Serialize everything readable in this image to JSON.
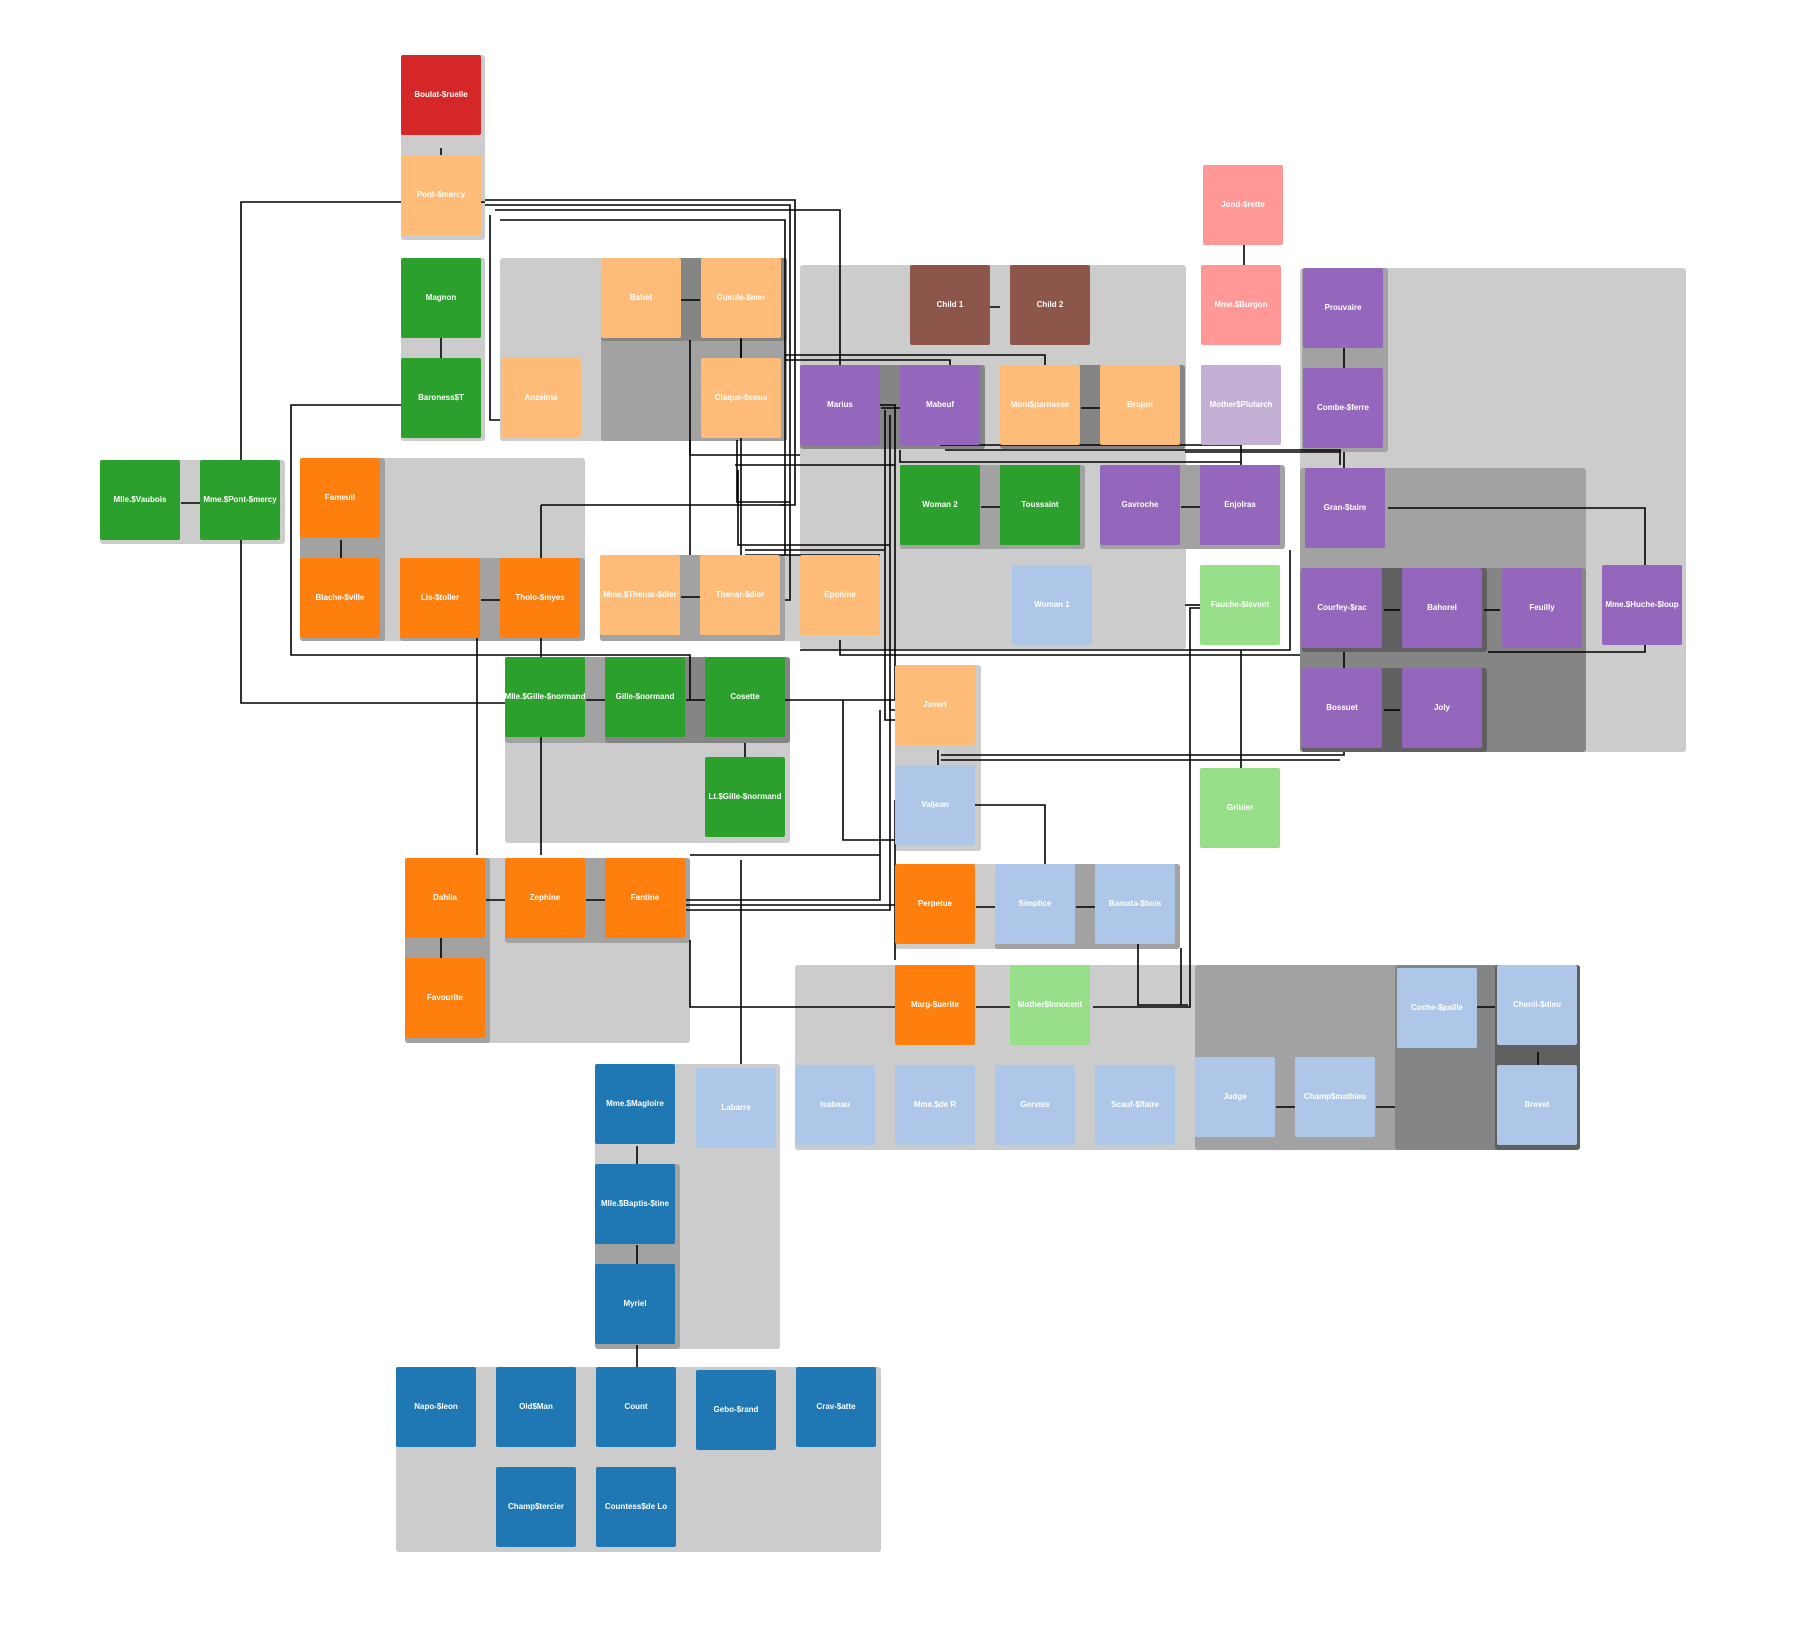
{
  "colors": {
    "group_light": "#cccccc",
    "group_mid": "#a2a2a2",
    "group_dark": "#858585",
    "edge": "#000000",
    "label": "#ffffff"
  },
  "nodes": [
    {
      "id": "boulat",
      "label": "Boulat-$ruelle",
      "color": "#d62728"
    },
    {
      "id": "pontmercy",
      "label": "Pont-$mercy",
      "color": "#ffbb78"
    },
    {
      "id": "magnon",
      "label": "Magnon",
      "color": "#2ca02c"
    },
    {
      "id": "barones",
      "label": "Baroness$T",
      "color": "#2ca02c"
    },
    {
      "id": "babet",
      "label": "Babet",
      "color": "#ffbb78"
    },
    {
      "id": "gueule",
      "label": "Gueule-$mer",
      "color": "#ffbb78"
    },
    {
      "id": "anzelma",
      "label": "Anzelma",
      "color": "#ffbb78"
    },
    {
      "id": "claque",
      "label": "Claque-$sous",
      "color": "#ffbb78"
    },
    {
      "id": "child1",
      "label": "Child 1",
      "color": "#8c564b"
    },
    {
      "id": "child2",
      "label": "Child 2",
      "color": "#8c564b"
    },
    {
      "id": "marius",
      "label": "Marius",
      "color": "#9467bd"
    },
    {
      "id": "mabeuf",
      "label": "Mabeuf",
      "color": "#9467bd"
    },
    {
      "id": "montpar",
      "label": "Mont$parnasse",
      "color": "#ffbb78"
    },
    {
      "id": "brujon",
      "label": "Brujon",
      "color": "#ffbb78"
    },
    {
      "id": "jondrette",
      "label": "Jond-$rette",
      "color": "#ff9896"
    },
    {
      "id": "burgon",
      "label": "Mme.$Burgon",
      "color": "#ff9896"
    },
    {
      "id": "motherplut",
      "label": "Mother$Plutarch",
      "color": "#c5b0d5"
    },
    {
      "id": "prouvaire",
      "label": "Prouvaire",
      "color": "#9467bd"
    },
    {
      "id": "combeferre",
      "label": "Combe-$ferre",
      "color": "#9467bd"
    },
    {
      "id": "vaubois",
      "label": "Mlle.$Vaubois",
      "color": "#2ca02c"
    },
    {
      "id": "mmepont",
      "label": "Mme.$Pont-$mercy",
      "color": "#2ca02c"
    },
    {
      "id": "fameuil",
      "label": "Fameuil",
      "color": "#ff7f0e"
    },
    {
      "id": "blacheville",
      "label": "Blache-$ville",
      "color": "#ff7f0e"
    },
    {
      "id": "listolier",
      "label": "Lis-$toller",
      "color": "#ff7f0e"
    },
    {
      "id": "tholomyes",
      "label": "Tholo-$myes",
      "color": "#ff7f0e"
    },
    {
      "id": "woman2",
      "label": "Woman 2",
      "color": "#2ca02c"
    },
    {
      "id": "toussaint",
      "label": "Toussaint",
      "color": "#2ca02c"
    },
    {
      "id": "gavroche",
      "label": "Gavroche",
      "color": "#9467bd"
    },
    {
      "id": "enjolras",
      "label": "Enjolras",
      "color": "#9467bd"
    },
    {
      "id": "grantaire",
      "label": "Gran-$taire",
      "color": "#9467bd"
    },
    {
      "id": "mmethenar",
      "label": "Mme.$Thenar-$dier",
      "color": "#ffbb78"
    },
    {
      "id": "thenardier",
      "label": "Thenar-$dier",
      "color": "#ffbb78"
    },
    {
      "id": "eponine",
      "label": "Eponine",
      "color": "#ffbb78"
    },
    {
      "id": "woman1",
      "label": "Woman 1",
      "color": "#aec7e8"
    },
    {
      "id": "fauchelevent",
      "label": "Fauche-$levent",
      "color": "#98df8a"
    },
    {
      "id": "courfeyrac",
      "label": "Courfey-$rac",
      "color": "#9467bd"
    },
    {
      "id": "bahorel",
      "label": "Bahorel",
      "color": "#9467bd"
    },
    {
      "id": "feuilly",
      "label": "Feuilly",
      "color": "#9467bd"
    },
    {
      "id": "mmehucheloup",
      "label": "Mme.$Huche-$loup",
      "color": "#9467bd"
    },
    {
      "id": "mllegille",
      "label": "Mlle.$Gille-$normand",
      "color": "#2ca02c"
    },
    {
      "id": "gillenormand",
      "label": "Gille-$normand",
      "color": "#2ca02c"
    },
    {
      "id": "cosette",
      "label": "Cosette",
      "color": "#2ca02c"
    },
    {
      "id": "javert",
      "label": "Javert",
      "color": "#ffbb78"
    },
    {
      "id": "bossuet",
      "label": "Bossuet",
      "color": "#9467bd"
    },
    {
      "id": "joly",
      "label": "Joly",
      "color": "#9467bd"
    },
    {
      "id": "ltgille",
      "label": "Lt.$Gille-$normand",
      "color": "#2ca02c"
    },
    {
      "id": "valjean",
      "label": "Valjean",
      "color": "#aec7e8"
    },
    {
      "id": "gribier",
      "label": "Gribier",
      "color": "#98df8a"
    },
    {
      "id": "dahlia",
      "label": "Dahlia",
      "color": "#ff7f0e"
    },
    {
      "id": "zephine",
      "label": "Zephine",
      "color": "#ff7f0e"
    },
    {
      "id": "fantine",
      "label": "Fantine",
      "color": "#ff7f0e"
    },
    {
      "id": "perpetue",
      "label": "Perpetue",
      "color": "#ff7f0e"
    },
    {
      "id": "simplice",
      "label": "Simplice",
      "color": "#aec7e8"
    },
    {
      "id": "bamatabois",
      "label": "Bamata-$bois",
      "color": "#aec7e8"
    },
    {
      "id": "favourite",
      "label": "Favourite",
      "color": "#ff7f0e"
    },
    {
      "id": "marguerite",
      "label": "Marg-$uerite",
      "color": "#ff7f0e"
    },
    {
      "id": "motherinnocent",
      "label": "Mother$Innocent",
      "color": "#98df8a"
    },
    {
      "id": "cochepaille",
      "label": "Coche-$paille",
      "color": "#aec7e8"
    },
    {
      "id": "chenildieu",
      "label": "Chenil-$dieu",
      "color": "#aec7e8"
    },
    {
      "id": "magloire",
      "label": "Mme.$Magloire",
      "color": "#1f77b4"
    },
    {
      "id": "labarre",
      "label": "Labarre",
      "color": "#aec7e8"
    },
    {
      "id": "isabeau",
      "label": "Isabeau",
      "color": "#aec7e8"
    },
    {
      "id": "mmeder",
      "label": "Mme.$de R",
      "color": "#aec7e8"
    },
    {
      "id": "gervais",
      "label": "Gervais",
      "color": "#aec7e8"
    },
    {
      "id": "scaufflaire",
      "label": "Scauf-$flaire",
      "color": "#aec7e8"
    },
    {
      "id": "judge",
      "label": "Judge",
      "color": "#aec7e8"
    },
    {
      "id": "champmathieu",
      "label": "Champ$mathieu",
      "color": "#aec7e8"
    },
    {
      "id": "brevet",
      "label": "Brevet",
      "color": "#aec7e8"
    },
    {
      "id": "baptistine",
      "label": "Mlle.$Baptis-$tine",
      "color": "#1f77b4"
    },
    {
      "id": "myriel",
      "label": "Myriel",
      "color": "#1f77b4"
    },
    {
      "id": "napoleon",
      "label": "Napo-$leon",
      "color": "#1f77b4"
    },
    {
      "id": "oldman",
      "label": "Old$Man",
      "color": "#1f77b4"
    },
    {
      "id": "count",
      "label": "Count",
      "color": "#1f77b4"
    },
    {
      "id": "geborand",
      "label": "Gebo-$rand",
      "color": "#1f77b4"
    },
    {
      "id": "cravatte",
      "label": "Crav-$atte",
      "color": "#1f77b4"
    },
    {
      "id": "champtercier",
      "label": "Champ$tercier",
      "color": "#1f77b4"
    },
    {
      "id": "countessdelo",
      "label": "Countess$de Lo",
      "color": "#1f77b4"
    }
  ]
}
